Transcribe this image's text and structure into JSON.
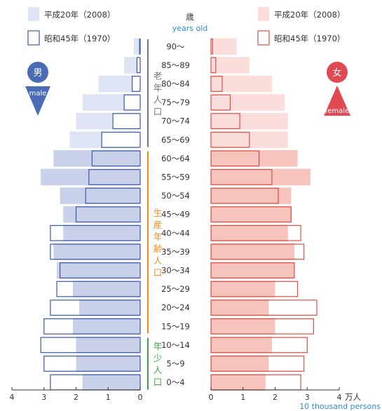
{
  "chart_data": {
    "type": "population-pyramid",
    "header": {
      "top": "歳",
      "bottom": "years old"
    },
    "legend": {
      "left": [
        {
          "label": "平成20年（2008）",
          "style": "filled"
        },
        {
          "label": "昭和45年（1970）",
          "style": "outlined"
        }
      ],
      "right": [
        {
          "label": "平成20年（2008）",
          "style": "filled"
        },
        {
          "label": "昭和45年（1970）",
          "style": "outlined"
        }
      ]
    },
    "male": {
      "symbol": "男",
      "label": "male"
    },
    "female": {
      "symbol": "女",
      "label": "female"
    },
    "age_groups": [
      "90〜",
      "85〜89",
      "80〜84",
      "75〜79",
      "70〜74",
      "65〜69",
      "60〜64",
      "55〜59",
      "50〜54",
      "45〜49",
      "40〜44",
      "35〜39",
      "30〜34",
      "25〜29",
      "20〜24",
      "15〜19",
      "10〜14",
      "5〜9",
      "0〜4"
    ],
    "series": [
      {
        "name": "平成20年（2008）",
        "sex": "male",
        "values": [
          0.2,
          0.5,
          1.3,
          1.8,
          2.0,
          2.2,
          2.7,
          3.1,
          2.5,
          2.4,
          2.4,
          2.7,
          2.6,
          2.1,
          1.9,
          2.1,
          2.0,
          2.0,
          1.8
        ]
      },
      {
        "name": "昭和45年（1970）",
        "sex": "male",
        "values": [
          0.02,
          0.1,
          0.25,
          0.5,
          0.85,
          1.2,
          1.5,
          1.6,
          1.7,
          2.0,
          2.8,
          2.8,
          2.5,
          2.6,
          2.8,
          3.0,
          3.1,
          3.0,
          2.8
        ]
      },
      {
        "name": "平成20年（2008）",
        "sex": "female",
        "values": [
          0.8,
          1.2,
          1.9,
          2.3,
          2.4,
          2.4,
          2.7,
          3.1,
          2.5,
          2.5,
          2.4,
          2.6,
          2.6,
          2.0,
          1.8,
          2.0,
          1.9,
          1.8,
          1.7
        ]
      },
      {
        "name": "昭和45年（1970）",
        "sex": "female",
        "values": [
          0.05,
          0.15,
          0.35,
          0.6,
          0.9,
          1.2,
          1.5,
          1.9,
          2.1,
          2.5,
          2.8,
          2.9,
          2.6,
          2.7,
          3.3,
          3.2,
          3.0,
          2.9,
          2.8
        ]
      }
    ],
    "xticks_left": [
      "4",
      "3",
      "2",
      "1",
      "0"
    ],
    "xticks_right": [
      "0",
      "1",
      "2",
      "3",
      "4"
    ],
    "x_unit": {
      "top": "万人",
      "bottom": "10 thousand persons"
    },
    "xlim": [
      0,
      4
    ],
    "groups": [
      {
        "label": "老年人口",
        "from": "65〜69",
        "to": "90〜",
        "color": "#777777"
      },
      {
        "label": "生産年齢人口",
        "from": "15〜19",
        "to": "60〜64",
        "color": "#f08c1e"
      },
      {
        "label": "年少人口",
        "from": "0〜4",
        "to": "10〜14",
        "color": "#3aa845"
      }
    ],
    "colors": {
      "male_fill": "#c7cfe9",
      "male_fill_2008_young": "#a9b4dd",
      "male_stroke": "#3b58a8",
      "female_fill": "#f6c9c2",
      "female_stroke": "#e04c45",
      "male_fill_back": "#dfe4f4",
      "female_fill_back": "#fbdedb",
      "male_icon": "#4a6bb5",
      "female_icon": "#e04a52"
    }
  }
}
